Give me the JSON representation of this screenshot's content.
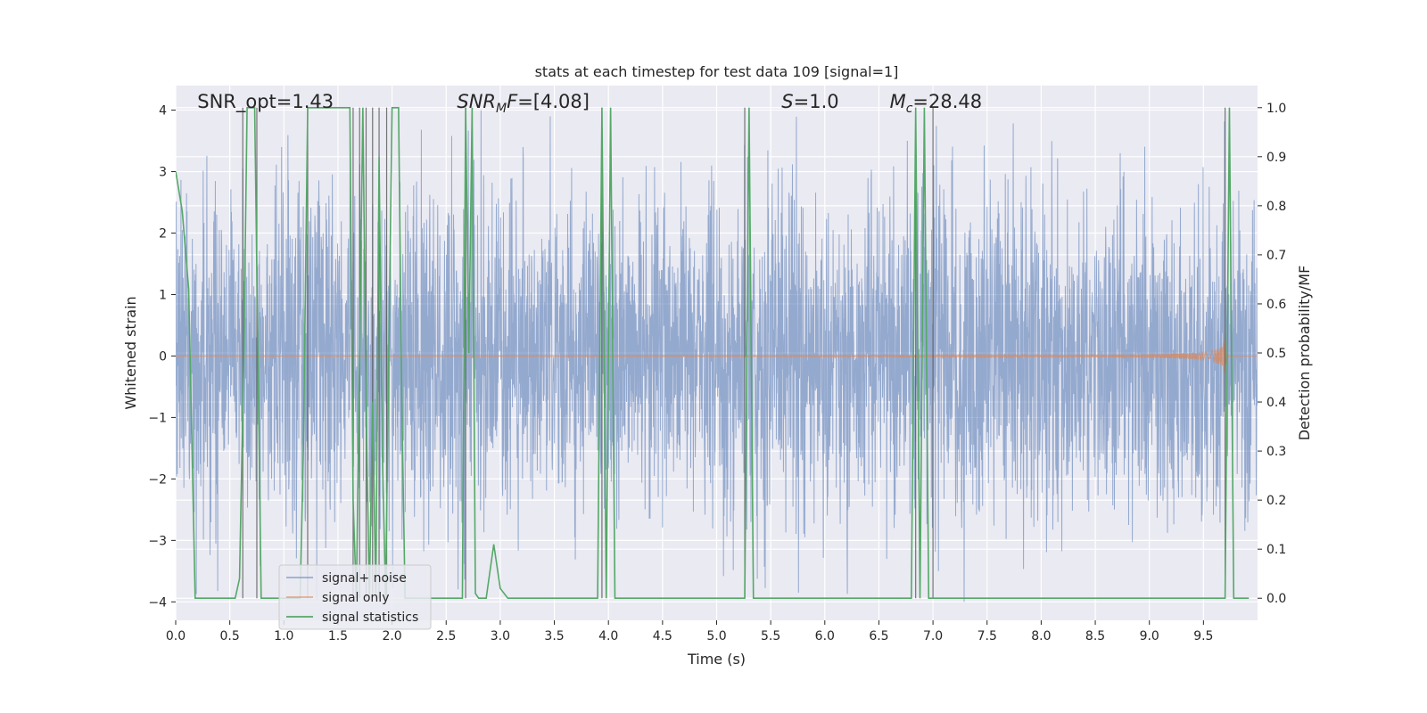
{
  "chart_data": {
    "type": "line",
    "title": "stats at each timestep for test data 109 [signal=1]",
    "xlabel": "Time (s)",
    "ylabel": "Whitened strain",
    "y2label": "Detection probability/MF",
    "xlim": [
      0,
      10
    ],
    "ylim": [
      -4.3,
      4.4
    ],
    "y2lim": [
      -0.045,
      1.045
    ],
    "grid": true,
    "legend_position": "lower-left",
    "x_ticks": [
      "0.0",
      "0.5",
      "1.0",
      "1.5",
      "2.0",
      "2.5",
      "3.0",
      "3.5",
      "4.0",
      "4.5",
      "5.0",
      "5.5",
      "6.0",
      "6.5",
      "7.0",
      "7.5",
      "8.0",
      "8.5",
      "9.0",
      "9.5"
    ],
    "x_tick_values": [
      0,
      0.5,
      1,
      1.5,
      2,
      2.5,
      3,
      3.5,
      4,
      4.5,
      5,
      5.5,
      6,
      6.5,
      7,
      7.5,
      8,
      8.5,
      9,
      9.5
    ],
    "y_ticks": [
      "−4",
      "−3",
      "−2",
      "−1",
      "0",
      "1",
      "2",
      "3",
      "4"
    ],
    "y_tick_values": [
      -4,
      -3,
      -2,
      -1,
      0,
      1,
      2,
      3,
      4
    ],
    "y2_ticks": [
      "0.0",
      "0.1",
      "0.2",
      "0.3",
      "0.4",
      "0.5",
      "0.6",
      "0.7",
      "0.8",
      "0.9",
      "1.0"
    ],
    "y2_tick_values": [
      0,
      0.1,
      0.2,
      0.3,
      0.4,
      0.5,
      0.6,
      0.7,
      0.8,
      0.9,
      1.0
    ],
    "annotations": [
      {
        "label": "SNR_opt=1.43",
        "x": 0.2
      },
      {
        "label": "SNR_MF=[4.08]",
        "x": 2.6
      },
      {
        "label": "S=1.0",
        "x": 5.6
      },
      {
        "label": "M_c=28.48",
        "x": 6.6
      }
    ],
    "vertical_lines_x": [
      0.62,
      0.75,
      1.22,
      1.64,
      1.7,
      1.76,
      1.82,
      1.88,
      1.95,
      2.68,
      3.94,
      5.26,
      6.84,
      7.0,
      9.7
    ],
    "series": [
      {
        "name": "signal+ noise",
        "color": "#4c72b0",
        "axis": "left",
        "description": "Gaussian whitened noise, amplitude ~±1.6 with excursions to ±4",
        "summary": {
          "t_start": 0,
          "t_end": 10,
          "typical_amplitude": 1.6,
          "peak_amplitude": 4.0
        }
      },
      {
        "name": "signal only",
        "color": "#dd8452",
        "axis": "left",
        "description": "chirp ending near t=9.7 s",
        "summary": {
          "merger_time": 9.7,
          "peak_amplitude": 0.35
        }
      },
      {
        "name": "signal statistics",
        "color": "#55a868",
        "axis": "right",
        "x": [
          0.0,
          0.06,
          0.12,
          0.18,
          0.55,
          0.59,
          0.63,
          0.66,
          0.73,
          0.76,
          0.79,
          1.15,
          1.18,
          1.22,
          1.25,
          1.61,
          1.64,
          1.67,
          1.7,
          1.73,
          1.76,
          1.79,
          1.82,
          1.85,
          1.88,
          1.91,
          1.94,
          1.97,
          2.0,
          2.03,
          2.06,
          2.09,
          2.12,
          2.15,
          2.19,
          2.65,
          2.68,
          2.71,
          2.74,
          2.77,
          2.8,
          2.87,
          2.94,
          3.0,
          3.07,
          3.14,
          3.9,
          3.94,
          3.98,
          4.02,
          4.06,
          5.22,
          5.26,
          5.3,
          5.34,
          5.38,
          6.8,
          6.84,
          6.88,
          6.92,
          6.96,
          9.66,
          9.7,
          9.74,
          9.78,
          9.82,
          9.92
        ],
        "values": [
          0.87,
          0.79,
          0.63,
          0.0,
          0.0,
          0.04,
          0.5,
          1.0,
          1.0,
          0.5,
          0.0,
          0.0,
          0.3,
          1.0,
          1.0,
          1.0,
          0.2,
          0.0,
          0.5,
          1.0,
          0.4,
          0.0,
          0.4,
          0.0,
          0.9,
          0.3,
          0.0,
          0.5,
          1.0,
          1.0,
          1.0,
          0.4,
          0.0,
          0.0,
          0.0,
          0.0,
          1.0,
          0.5,
          1.0,
          0.01,
          0.0,
          0.0,
          0.11,
          0.02,
          0.0,
          0.0,
          0.0,
          1.0,
          0.0,
          1.0,
          0.0,
          0.0,
          0.0,
          1.0,
          0.0,
          0.0,
          0.0,
          1.0,
          0.0,
          1.0,
          0.0,
          0.0,
          0.0,
          1.0,
          0.0,
          0.0,
          0.0
        ]
      }
    ]
  }
}
